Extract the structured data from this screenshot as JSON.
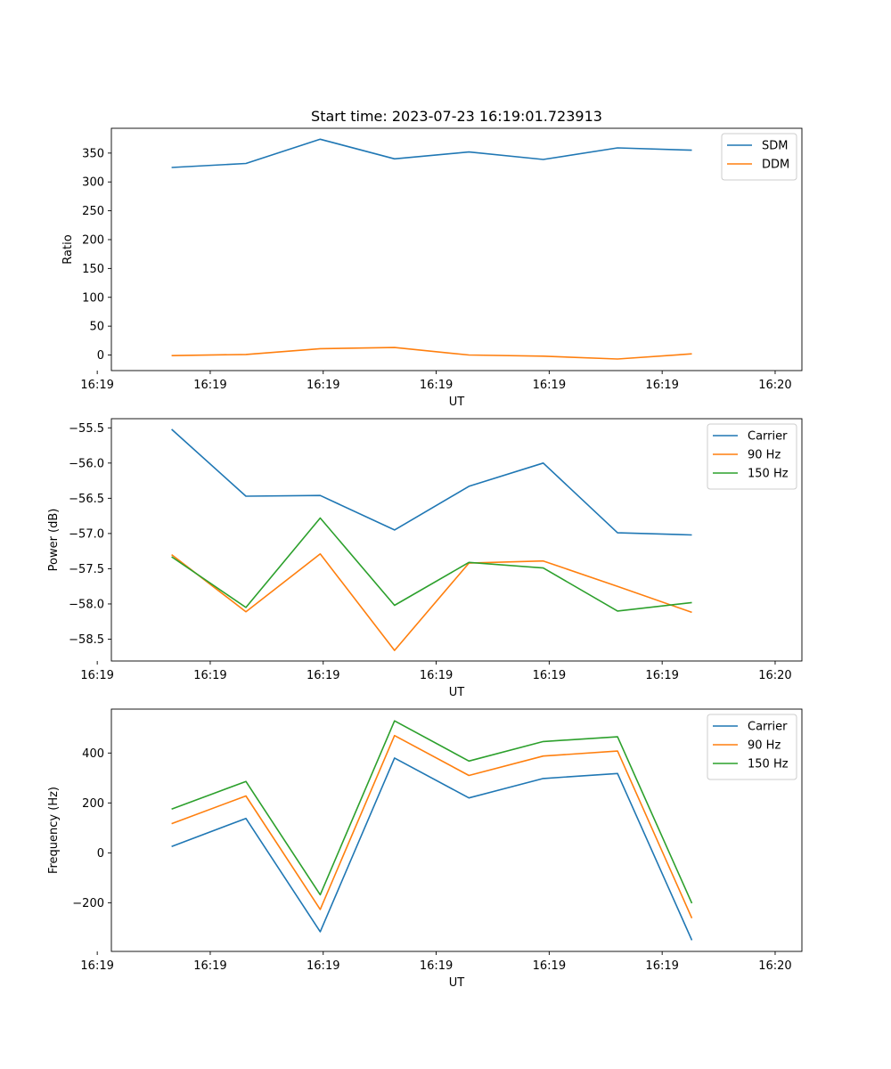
{
  "title": "Start time: 2023-07-23 16:19:01.723913",
  "colors": {
    "blue": "#1f77b4",
    "orange": "#ff7f0e",
    "green": "#2ca02c"
  },
  "chart_data": [
    {
      "type": "line",
      "name": "ratio",
      "xlabel": "UT",
      "ylabel": "Ratio",
      "x": [
        1,
        2,
        3,
        4,
        5,
        6,
        7,
        8
      ],
      "xlim": [
        0.19,
        9.48
      ],
      "xticks": [
        0,
        1.52,
        3.04,
        4.56,
        6.08,
        7.6,
        9.12
      ],
      "xtick_labels": [
        "16:19",
        "16:19",
        "16:19",
        "16:19",
        "16:19",
        "16:19",
        "16:20"
      ],
      "ylim": [
        -27,
        393
      ],
      "yticks": [
        0,
        50,
        100,
        150,
        200,
        250,
        300,
        350
      ],
      "ytick_labels": [
        "0",
        "50",
        "100",
        "150",
        "200",
        "250",
        "300",
        "350"
      ],
      "legend_loc": "upper right",
      "series": [
        {
          "name": "SDM",
          "color": "blue",
          "values": [
            325,
            332,
            374,
            340,
            352,
            339,
            359,
            355
          ]
        },
        {
          "name": "DDM",
          "color": "orange",
          "values": [
            -1,
            1,
            11,
            13,
            0,
            -2,
            -7,
            2
          ]
        }
      ]
    },
    {
      "type": "line",
      "name": "power",
      "xlabel": "UT",
      "ylabel": "Power (dB)",
      "x": [
        1,
        2,
        3,
        4,
        5,
        6,
        7,
        8
      ],
      "xlim": [
        0.19,
        9.48
      ],
      "xticks": [
        0,
        1.52,
        3.04,
        4.56,
        6.08,
        7.6,
        9.12
      ],
      "xtick_labels": [
        "16:19",
        "16:19",
        "16:19",
        "16:19",
        "16:19",
        "16:19",
        "16:20"
      ],
      "ylim": [
        -58.81,
        -55.37
      ],
      "yticks": [
        -55.5,
        -56.0,
        -56.5,
        -57.0,
        -57.5,
        -58.0,
        -58.5
      ],
      "ytick_labels": [
        "−55.5",
        "−56.0",
        "−56.5",
        "−57.0",
        "−57.5",
        "−58.0",
        "−58.5"
      ],
      "legend_loc": "upper right",
      "series": [
        {
          "name": "Carrier",
          "color": "blue",
          "values": [
            -55.52,
            -56.47,
            -56.46,
            -56.95,
            -56.33,
            -56.0,
            -56.99,
            -57.02
          ]
        },
        {
          "name": "90 Hz",
          "color": "orange",
          "values": [
            -57.3,
            -58.11,
            -57.29,
            -58.66,
            -57.42,
            -57.39,
            -57.75,
            -58.12
          ]
        },
        {
          "name": "150 Hz",
          "color": "green",
          "values": [
            -57.33,
            -58.05,
            -56.78,
            -58.02,
            -57.41,
            -57.49,
            -58.1,
            -57.98
          ]
        }
      ]
    },
    {
      "type": "line",
      "name": "frequency",
      "xlabel": "UT",
      "ylabel": "Frequency (Hz)",
      "x": [
        1,
        2,
        3,
        4,
        5,
        6,
        7,
        8
      ],
      "xlim": [
        0.19,
        9.48
      ],
      "xticks": [
        0,
        1.52,
        3.04,
        4.56,
        6.08,
        7.6,
        9.12
      ],
      "xtick_labels": [
        "16:19",
        "16:19",
        "16:19",
        "16:19",
        "16:19",
        "16:19",
        "16:20"
      ],
      "ylim": [
        -395,
        576
      ],
      "yticks": [
        -200,
        0,
        200,
        400
      ],
      "ytick_labels": [
        "−200",
        "0",
        "200",
        "400"
      ],
      "legend_loc": "upper right",
      "series": [
        {
          "name": "Carrier",
          "color": "blue",
          "values": [
            25,
            138,
            -316,
            380,
            220,
            298,
            318,
            -350
          ]
        },
        {
          "name": "90 Hz",
          "color": "orange",
          "values": [
            117,
            228,
            -227,
            470,
            310,
            388,
            408,
            -262
          ]
        },
        {
          "name": "150 Hz",
          "color": "green",
          "values": [
            175,
            286,
            -168,
            529,
            368,
            446,
            465,
            -202
          ]
        }
      ]
    }
  ]
}
